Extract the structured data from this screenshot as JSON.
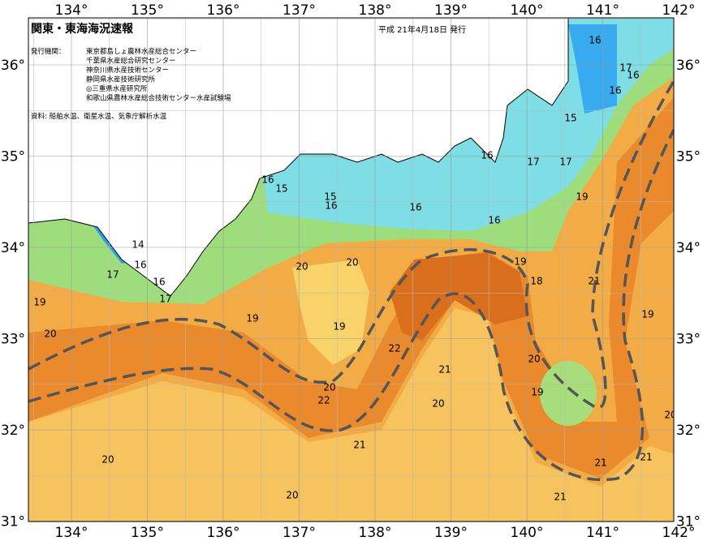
{
  "header": {
    "title": "関東・東海海況速報",
    "date": "平成 21年4月18日 発行"
  },
  "issuers": {
    "label": "発行機関：",
    "names": [
      "東京都島しょ農林水産総合センター",
      "千葉県水産総合研究センター",
      "神奈川県水産技術センター",
      "静岡県水産技術研究所",
      "◎三重県水産研究所",
      "和歌山県農林水産総合技術センター水産試験場"
    ]
  },
  "source": "資料: 船舶水温、衛星水温、気象庁解析水温",
  "longitude_labels": [
    "134°",
    "135°",
    "136°",
    "137°",
    "138°",
    "139°",
    "140°",
    "141°",
    "142°"
  ],
  "latitude_labels": [
    "36°",
    "35°",
    "34°",
    "33°",
    "32°",
    "31°"
  ],
  "contour_labels": [
    "16",
    "17",
    "16",
    "16",
    "15",
    "16",
    "17",
    "17",
    "19",
    "16",
    "15",
    "15",
    "16",
    "16",
    "16",
    "14",
    "16",
    "17",
    "16",
    "17",
    "19",
    "20",
    "20",
    "19",
    "18",
    "21",
    "19",
    "19",
    "19",
    "20",
    "22",
    "20",
    "21",
    "20",
    "22",
    "19",
    "20",
    "20",
    "21",
    "20",
    "21",
    "21",
    "20",
    "21"
  ]
}
